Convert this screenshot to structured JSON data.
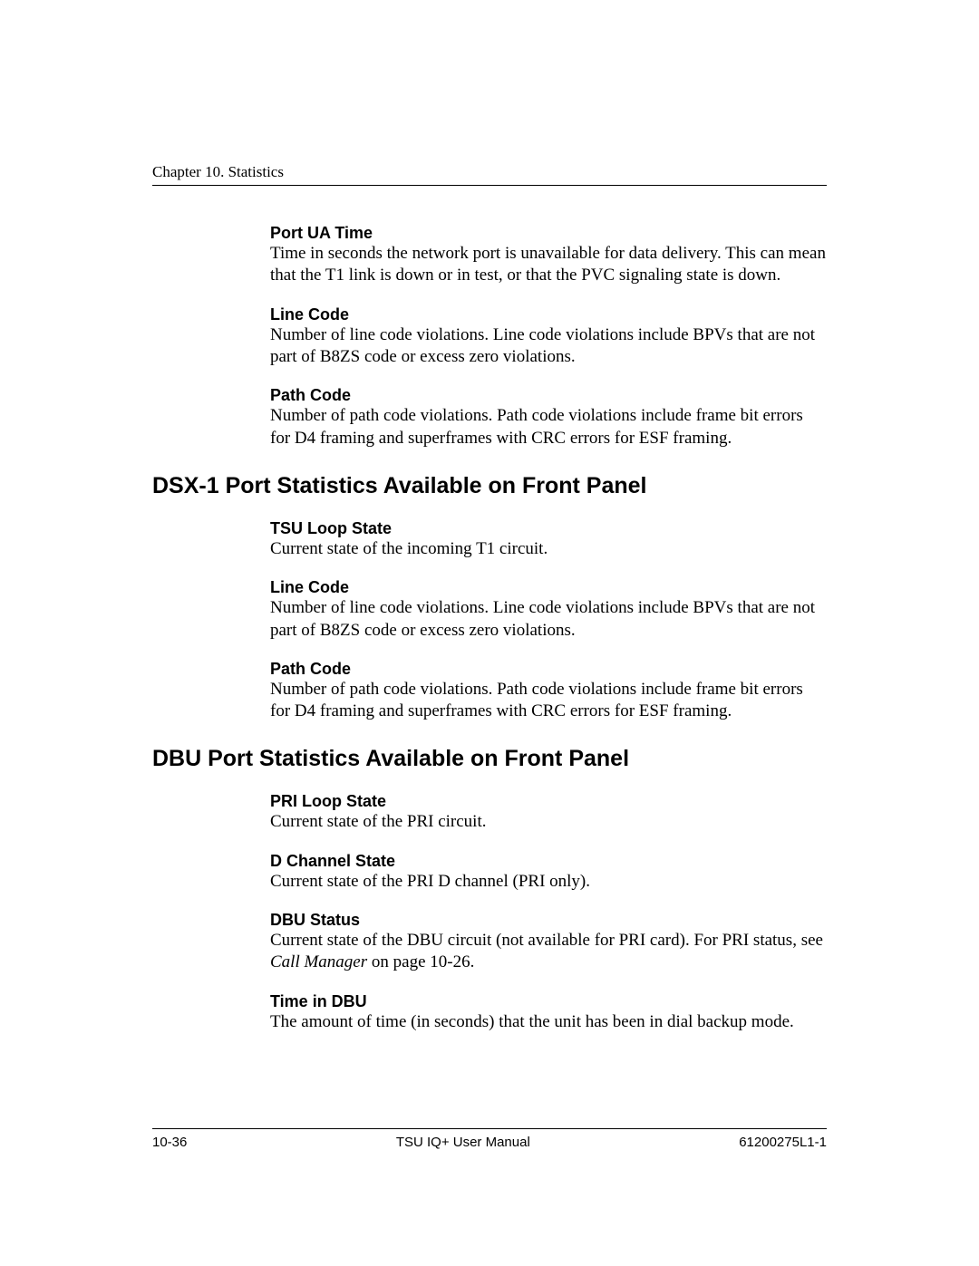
{
  "header": {
    "chapter_label": "Chapter 10. Statistics"
  },
  "sections": [
    {
      "heading": null,
      "items": [
        {
          "term": "Port UA Time",
          "body": "Time in seconds the network port is unavailable for data delivery. This can mean that the T1 link is down or in test, or that the PVC signaling state is down."
        },
        {
          "term": "Line Code",
          "body": "Number of line code violations. Line code violations include BPVs that are not part of B8ZS code or excess zero violations."
        },
        {
          "term": "Path Code",
          "body": "Number of path code violations.  Path code violations include frame bit errors for D4 framing and superframes with CRC errors for ESF framing."
        }
      ]
    },
    {
      "heading": "DSX-1 Port Statistics Available on Front Panel",
      "items": [
        {
          "term": "TSU Loop State",
          "body": "Current state of the incoming T1 circuit."
        },
        {
          "term": "Line Code",
          "body": "Number of line code violations.  Line code violations include BPVs that are not part of B8ZS code or excess zero violations."
        },
        {
          "term": "Path Code",
          "body": "Number of path code violations.  Path code violations include frame bit errors for D4 framing and superframes with CRC errors for ESF framing."
        }
      ]
    },
    {
      "heading": "DBU Port Statistics Available on Front Panel",
      "items": [
        {
          "term": "PRI Loop State",
          "body": "Current state of the PRI circuit."
        },
        {
          "term": "D Channel State",
          "body": "Current state of the PRI D channel (PRI only)."
        },
        {
          "term": "DBU Status",
          "body_pre": "Current state of the DBU circuit (not available for PRI card). For PRI status, see ",
          "body_italic": "Call Manager",
          "body_post": " on page 10-26."
        },
        {
          "term": "Time in DBU",
          "body": "The amount of time (in seconds) that the unit has been in dial backup mode."
        }
      ]
    }
  ],
  "footer": {
    "page_number": "10-36",
    "center": "TSU IQ+ User Manual",
    "doc_number": "61200275L1-1"
  }
}
